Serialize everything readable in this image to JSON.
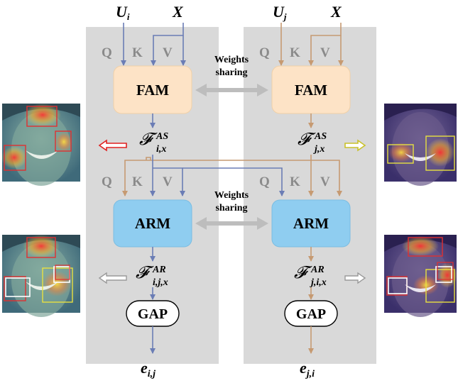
{
  "inputs": {
    "left_u": "U",
    "left_u_sub": "i",
    "left_x": "X",
    "right_u": "U",
    "right_u_sub": "j",
    "right_x": "X"
  },
  "qkv": {
    "q": "Q",
    "k": "K",
    "v": "V"
  },
  "modules": {
    "fam": "FAM",
    "arm": "ARM",
    "gap": "GAP"
  },
  "sharing": {
    "line1": "Weights",
    "line2": "sharing"
  },
  "features": {
    "fam_symbol": "𝓕",
    "fam_sup": "AS",
    "fam_sub_left": "i,x",
    "fam_sub_right": "j,x",
    "arm_symbol": "𝓕",
    "arm_sup": "AR",
    "arm_sub_left": "i,j,x",
    "arm_sub_right": "j,i,x"
  },
  "outputs": {
    "left_e": "e",
    "left_e_sub": "i,j",
    "right_e": "e",
    "right_e_sub": "j,i"
  },
  "colors": {
    "panel": "#d9d9d9",
    "fam_fill": "#fde3c6",
    "arm_fill": "#8fcdf0",
    "blue_arrow": "#6b7db5",
    "brown_arrow": "#c69a72",
    "qkv_text": "#8a8a8a",
    "share_arrow": "#bdbdbd",
    "red_arrow": "#e02020",
    "yellow_arrow": "#c9c12a",
    "face_box_red": "#e03030",
    "face_box_yellow": "#e8e040"
  }
}
